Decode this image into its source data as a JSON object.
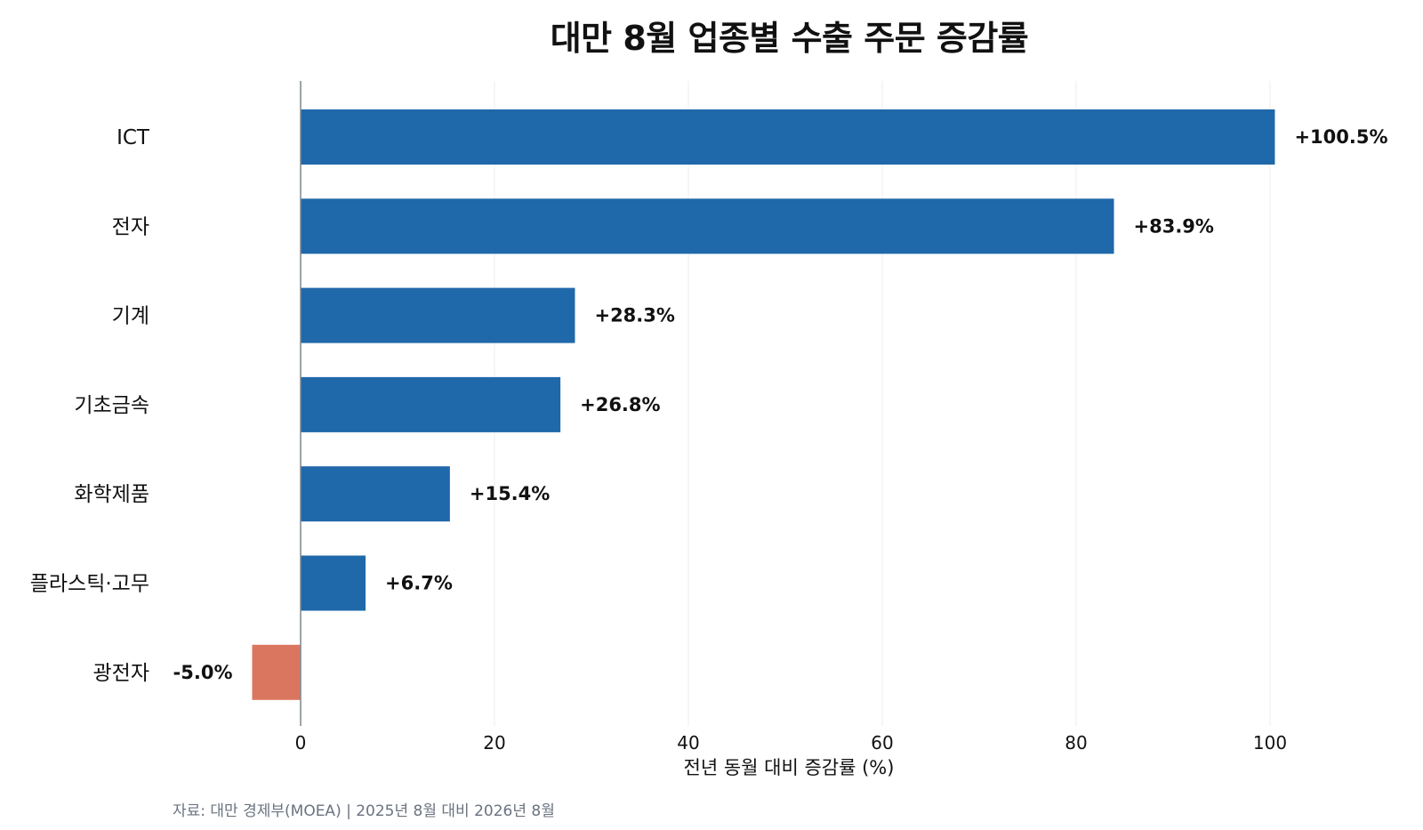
{
  "colors": {
    "positive": "#1f68aa",
    "negative": "#da7660",
    "axis": "#7f858c",
    "grid": "#ececec",
    "text": "#111111",
    "note": "#6b7380"
  },
  "chart_data": {
    "type": "bar",
    "orientation": "horizontal",
    "title": "대만 8월 업종별 수출 주문 증감률",
    "xlabel": "전년 동월 대비 증감률 (%)",
    "ylabel": "",
    "categories": [
      "ICT",
      "전자",
      "기계",
      "기초금속",
      "화학제품",
      "플라스틱·고무",
      "광전자"
    ],
    "values": [
      100.5,
      83.9,
      28.3,
      26.8,
      15.4,
      6.7,
      -5.0
    ],
    "data_labels": [
      "+100.5%",
      "+83.9%",
      "+28.3%",
      "+26.8%",
      "+15.4%",
      "+6.7%",
      "-5.0%"
    ],
    "x_ticks": [
      0,
      20,
      40,
      60,
      80,
      100
    ],
    "xlim": [
      -14,
      112
    ],
    "grid": "vertical",
    "legend": "none"
  },
  "footer": {
    "source": "자료: 대만 경제부(MOEA) | 2025년 8월 대비 2026년 8월"
  }
}
